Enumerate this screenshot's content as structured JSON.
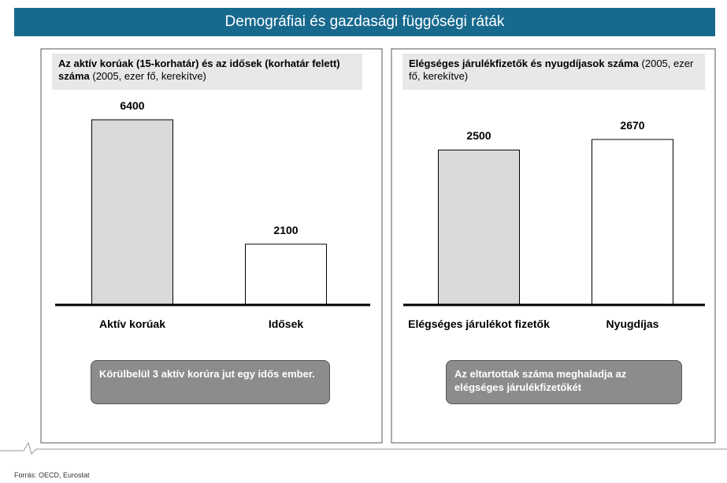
{
  "header": {
    "title": "Demográfiai és gazdasági függőségi ráták"
  },
  "chart_data": [
    {
      "type": "bar",
      "title": "Az aktív korúak (15-korhatár) és az idősek (korhatár felett) száma",
      "subtitle": "(2005, ezer fő, kerekítve)",
      "categories": [
        "Aktív korúak",
        "Idősek"
      ],
      "values": [
        6400,
        2100
      ],
      "colors": [
        "#d9d9d9",
        "#ffffff"
      ],
      "annotation": "Körülbelül 3 aktív korúra jut egy idős ember."
    },
    {
      "type": "bar",
      "title": "Elégséges járulékfizetők és nyugdíjasok száma",
      "subtitle": "(2005, ezer fő, kerekítve)",
      "categories": [
        "Elégséges járulékot fizetők",
        "Nyugdíjas"
      ],
      "values": [
        2500,
        2670
      ],
      "colors": [
        "#d9d9d9",
        "#ffffff"
      ],
      "annotation": "Az eltartottak száma meghaladja az elégséges járulékfizetőkét"
    }
  ],
  "footer": {
    "source": "Forrás: OECD, Eurostat"
  }
}
